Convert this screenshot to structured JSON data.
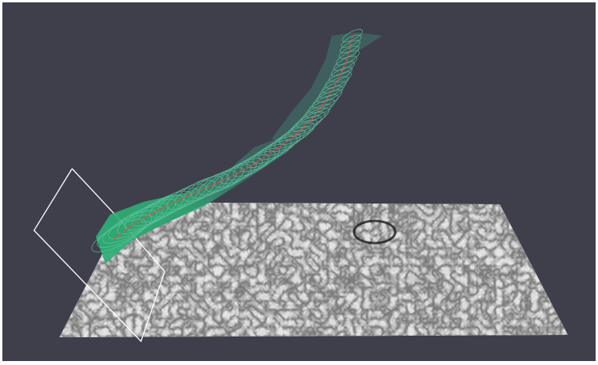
{
  "viewer": {
    "background_color": "#3f3f4b",
    "frame_color": "#ffffff"
  },
  "scene": {
    "em_slice": {
      "type": "grayscale-em-texture",
      "base_color": "#9a9a9a",
      "membrane_color": "#1e1e1e"
    },
    "neurite_surface": {
      "color": "#2fb077",
      "wire_color": "#5fc79f"
    },
    "centerline": {
      "color": "#e0504a"
    },
    "clip_plane_outline": {
      "color": "#ffffff"
    }
  }
}
